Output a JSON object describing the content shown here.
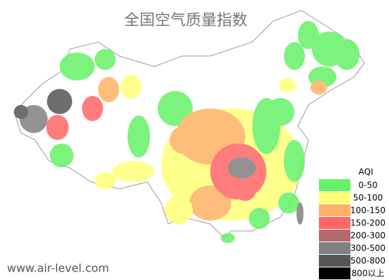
{
  "title": "全国空气质量指数",
  "legend": {
    "title": "AQI",
    "items": [
      {
        "label": "0-50",
        "color": "#66f266"
      },
      {
        "label": "50-100",
        "color": "#ffff77"
      },
      {
        "label": "100-150",
        "color": "#ffb266"
      },
      {
        "label": "150-200",
        "color": "#ff6666"
      },
      {
        "label": "200-300",
        "color": "#b36b6b"
      },
      {
        "label": "300-500",
        "color": "#808080"
      },
      {
        "label": "500-800",
        "color": "#555555"
      },
      {
        "label": "800以上",
        "color": "#000000"
      }
    ]
  },
  "watermark": "www.air-level.com"
}
